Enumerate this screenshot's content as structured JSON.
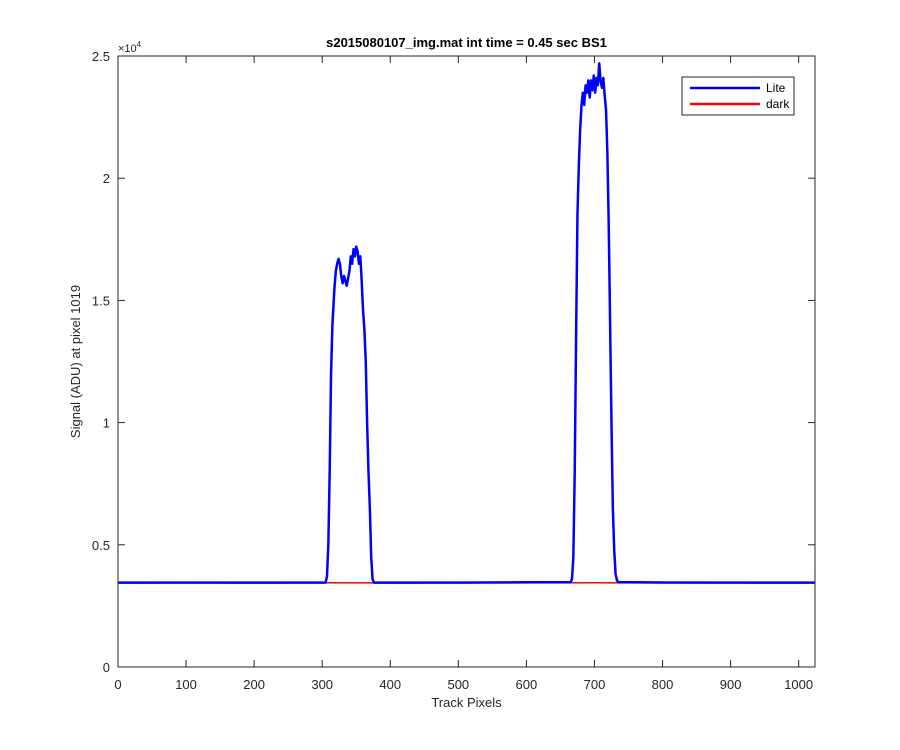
{
  "chart_data": {
    "type": "line",
    "title": "s2015080107_img.mat int time = 0.45 sec    BS1",
    "xlabel": "Track Pixels",
    "ylabel": "Signal (ADU) at pixel 1019",
    "xlim": [
      0,
      1024
    ],
    "ylim": [
      0,
      25000
    ],
    "x_ticks": [
      0,
      100,
      200,
      300,
      400,
      500,
      600,
      700,
      800,
      900,
      1000
    ],
    "y_ticks": [
      0,
      5000,
      10000,
      15000,
      20000,
      25000
    ],
    "y_tick_labels": [
      "0",
      "0.5",
      "1",
      "1.5",
      "2",
      "2.5"
    ],
    "y_exponent_label": "×10",
    "y_exponent": "4",
    "grid": false,
    "legend_position": "top-right",
    "series": [
      {
        "name": "Lite",
        "color": "#0000ff",
        "x": [
          0,
          305,
          307,
          309,
          311,
          313,
          315,
          318,
          320,
          322,
          324,
          326,
          328,
          330,
          332,
          334,
          336,
          338,
          340,
          342,
          344,
          346,
          348,
          350,
          352,
          354,
          356,
          358,
          360,
          362,
          364,
          366,
          368,
          370,
          372,
          374,
          376,
          400,
          500,
          600,
          665,
          667,
          669,
          671,
          673,
          675,
          677,
          679,
          681,
          683,
          685,
          687,
          689,
          691,
          693,
          695,
          697,
          699,
          701,
          703,
          705,
          707,
          709,
          711,
          713,
          715,
          717,
          719,
          721,
          723,
          725,
          727,
          729,
          731,
          733,
          735,
          800,
          900,
          1024
        ],
        "y": [
          3450,
          3450,
          3700,
          5000,
          8000,
          12000,
          14000,
          15500,
          16200,
          16500,
          16700,
          16500,
          16000,
          15700,
          16000,
          15800,
          15600,
          15900,
          16200,
          16800,
          16500,
          17100,
          16800,
          17200,
          17000,
          16500,
          16800,
          15800,
          14600,
          13800,
          12500,
          10000,
          8000,
          6500,
          4500,
          3600,
          3450,
          3450,
          3450,
          3470,
          3470,
          3600,
          4500,
          8000,
          13500,
          18500,
          20500,
          22000,
          23000,
          23500,
          23000,
          23800,
          23500,
          24000,
          23300,
          24000,
          23600,
          24200,
          23500,
          24100,
          23800,
          24700,
          24000,
          23700,
          24100,
          23400,
          22800,
          21000,
          18000,
          14000,
          10000,
          6500,
          4800,
          3800,
          3550,
          3470,
          3460,
          3450,
          3450
        ]
      },
      {
        "name": "dark",
        "color": "#ff0000",
        "x": [
          0,
          100,
          200,
          300,
          400,
          500,
          600,
          700,
          800,
          900,
          1024
        ],
        "y": [
          3440,
          3445,
          3440,
          3445,
          3440,
          3445,
          3440,
          3445,
          3440,
          3445,
          3440
        ]
      }
    ]
  }
}
